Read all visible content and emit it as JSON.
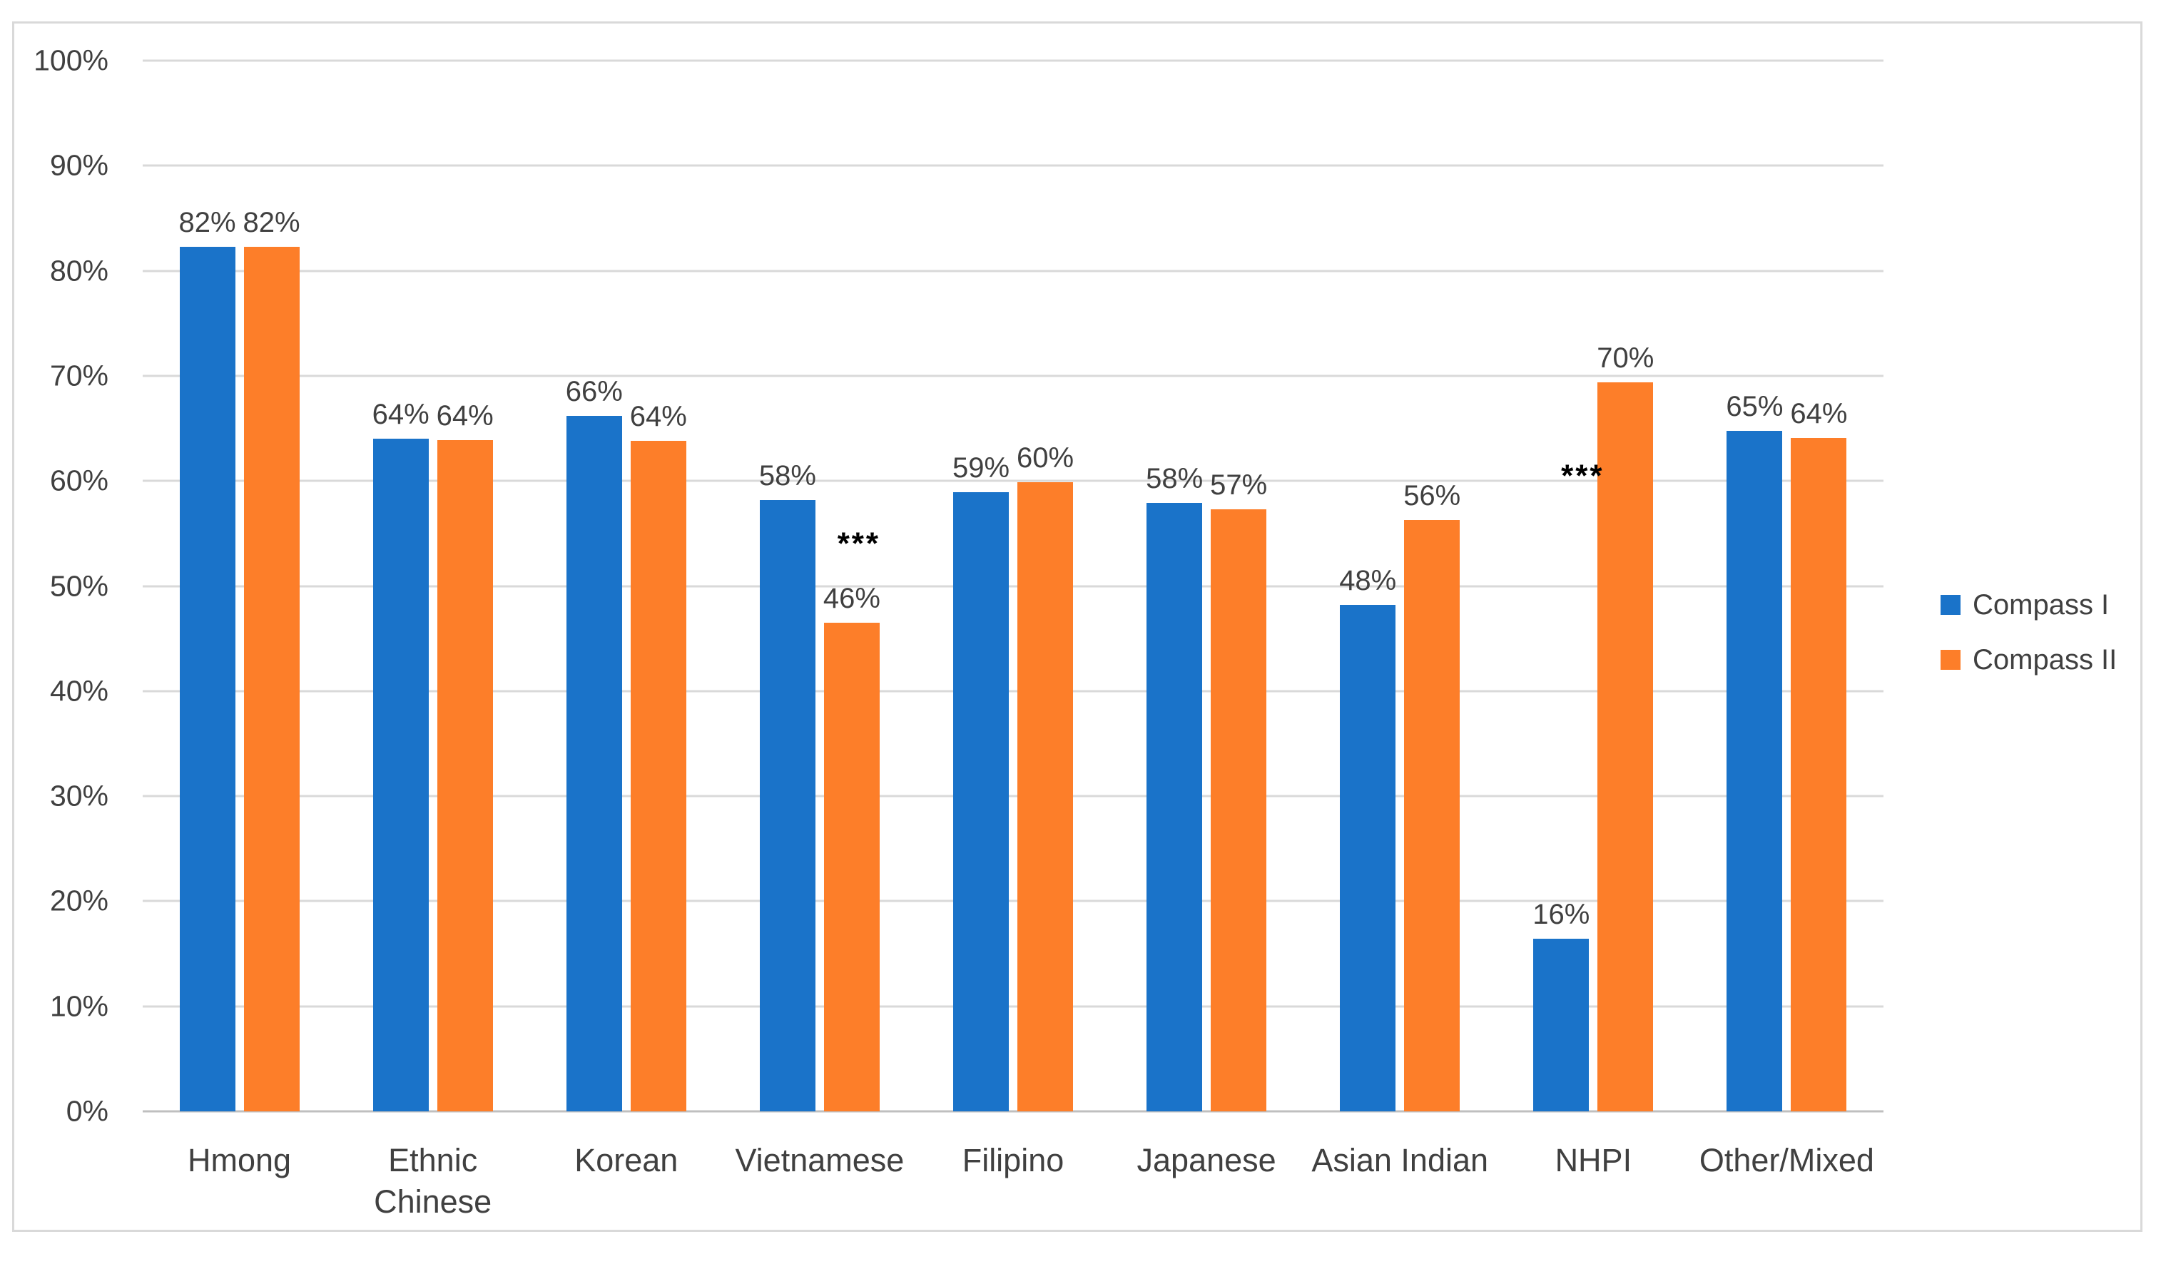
{
  "chart_data": {
    "type": "bar",
    "title": "",
    "categories": [
      "Hmong",
      "Ethnic Chinese",
      "Korean",
      "Vietnamese",
      "Filipino",
      "Japanese",
      "Asian Indian",
      "NHPI",
      "Other/Mixed"
    ],
    "series": [
      {
        "name": "Compass I",
        "color": "#1A73C9",
        "values": [
          82,
          64,
          66,
          58,
          59,
          58,
          48,
          16,
          65
        ],
        "data_labels": [
          "82%",
          "64%",
          "66%",
          "58%",
          "59%",
          "58%",
          "48%",
          "16%",
          "65%"
        ],
        "bar_heights_pct": [
          82.3,
          64.0,
          66.2,
          58.2,
          58.9,
          57.9,
          48.2,
          16.4,
          64.8
        ]
      },
      {
        "name": "Compass II",
        "color": "#FD7E29",
        "values": [
          82,
          64,
          64,
          46,
          60,
          57,
          56,
          70,
          64
        ],
        "data_labels": [
          "82%",
          "64%",
          "64%",
          "46%",
          "60%",
          "57%",
          "56%",
          "70%",
          "64%"
        ],
        "bar_heights_pct": [
          82.3,
          63.9,
          63.8,
          46.5,
          59.9,
          57.3,
          56.3,
          69.4,
          64.1
        ]
      }
    ],
    "annotations": [
      {
        "text": "***",
        "category": "Vietnamese",
        "series": "Compass II",
        "y_pct": 54.4,
        "x_offset": 10
      },
      {
        "text": "***",
        "category": "NHPI",
        "series": "Compass I",
        "y_pct": 60.8,
        "x_offset": 30
      }
    ],
    "y_axis": {
      "min": 0,
      "max": 100,
      "step": 10,
      "tick_labels": [
        "0%",
        "10%",
        "20%",
        "30%",
        "40%",
        "50%",
        "60%",
        "70%",
        "80%",
        "90%",
        "100%"
      ]
    },
    "x_axis": {
      "labels": [
        "Hmong",
        "Ethnic Chinese",
        "Korean",
        "Vietnamese",
        "Filipino",
        "Japanese",
        "Asian Indian",
        "NHPI",
        "Other/Mixed"
      ]
    },
    "legend": {
      "position": "right",
      "entries": [
        {
          "label": "Compass I",
          "color": "#1A73C9"
        },
        {
          "label": "Compass II",
          "color": "#FD7E29"
        }
      ]
    },
    "grid": true,
    "ylim": [
      0,
      100
    ]
  },
  "styles": {
    "grid_color": "#D9D9D9",
    "axis_line_color": "#BFBFBF",
    "frame_border_color": "#D9D9D9",
    "text_color": "#404040",
    "annotation_color": "#000000",
    "background": "#FFFFFF"
  }
}
